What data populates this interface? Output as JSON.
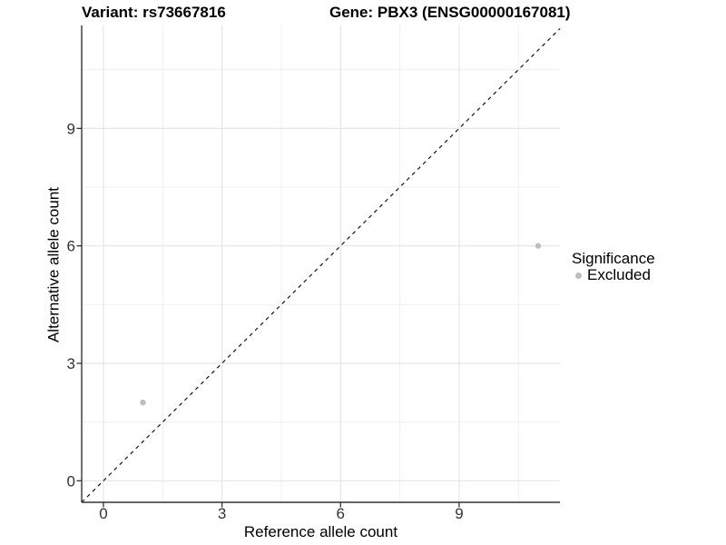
{
  "chart_data": {
    "type": "scatter",
    "titles": {
      "left": "Variant: rs73667816",
      "right": "Gene: PBX3 (ENSG00000167081)"
    },
    "xlabel": "Reference allele count",
    "ylabel": "Alternative allele count",
    "xlim": [
      -0.55,
      11.55
    ],
    "ylim": [
      -0.55,
      11.63
    ],
    "x_ticks": [
      0,
      3,
      6,
      9
    ],
    "y_ticks": [
      0,
      3,
      6,
      9
    ],
    "x_minor": [
      1.5,
      4.5,
      7.5,
      10.5
    ],
    "y_minor": [
      1.5,
      4.5,
      7.5,
      10.5
    ],
    "grid": "on",
    "series": [
      {
        "name": "Excluded",
        "marker": "circle",
        "color": "#bebebe",
        "points": [
          [
            1,
            2
          ],
          [
            11,
            6
          ]
        ]
      }
    ],
    "identity_line": {
      "style": "dashed",
      "color": "#000000",
      "from": -0.55,
      "to": 11.55
    },
    "legend": {
      "title": "Significance",
      "position": "right",
      "entries": [
        {
          "label": "Excluded",
          "color": "#bebebe",
          "marker": "circle"
        }
      ]
    }
  },
  "colors": {
    "background": "#ffffff",
    "grid_major": "#e5e5e5",
    "grid_minor": "#eeeeee",
    "axis": "#333333",
    "tick_label": "#333333",
    "point": "#bebebe",
    "identity_line": "#000000"
  }
}
